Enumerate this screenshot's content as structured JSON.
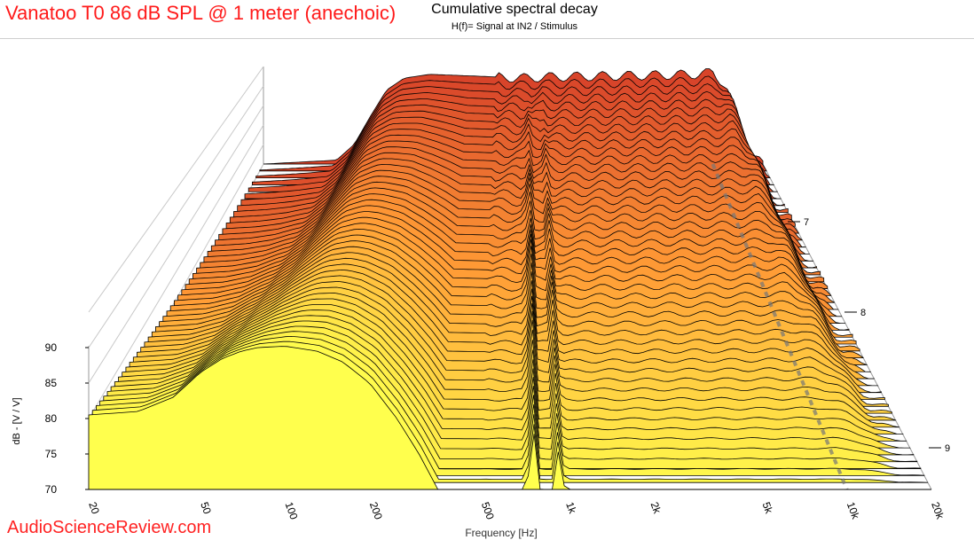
{
  "header": {
    "title": "Vanatoo T0 86 dB SPL @ 1 meter (anechoic)",
    "watermark": "AudioScienceReview.com"
  },
  "chart_data": {
    "type": "waterfall",
    "title": "Cumulative spectral decay",
    "subtitle": "H(f)= Signal at IN2 / Stimulus",
    "xlabel": "Frequency [Hz]",
    "ylabel": "dB - [V / V]",
    "x_scale": "log",
    "xlim": [
      20,
      20000
    ],
    "x_ticks": [
      20,
      50,
      100,
      200,
      500,
      1000,
      2000,
      5000,
      10000,
      20000
    ],
    "x_tick_labels": [
      "20",
      "50",
      "100",
      "200",
      "500",
      "1k",
      "2k",
      "5k",
      "10k",
      "20k"
    ],
    "ylim": [
      70,
      95
    ],
    "y_ticks": [
      70,
      75,
      80,
      85,
      90
    ],
    "time_ticks": [
      "7",
      "8",
      "9"
    ],
    "slices": 48,
    "front_slice_profile": [
      {
        "f": 20,
        "db": 80.5
      },
      {
        "f": 30,
        "db": 81
      },
      {
        "f": 40,
        "db": 83
      },
      {
        "f": 50,
        "db": 86.5
      },
      {
        "f": 60,
        "db": 88.5
      },
      {
        "f": 70,
        "db": 89.5
      },
      {
        "f": 80,
        "db": 90
      },
      {
        "f": 100,
        "db": 90.2
      },
      {
        "f": 130,
        "db": 89.5
      },
      {
        "f": 160,
        "db": 88
      },
      {
        "f": 200,
        "db": 85
      },
      {
        "f": 250,
        "db": 80
      },
      {
        "f": 300,
        "db": 75
      },
      {
        "f": 350,
        "db": 70
      }
    ],
    "first_slice_profile": [
      {
        "f": 20,
        "db": 70
      },
      {
        "f": 55,
        "db": 71
      },
      {
        "f": 70,
        "db": 75
      },
      {
        "f": 90,
        "db": 83
      },
      {
        "f": 110,
        "db": 89
      },
      {
        "f": 140,
        "db": 92
      },
      {
        "f": 200,
        "db": 93
      },
      {
        "f": 400,
        "db": 92.5
      },
      {
        "f": 700,
        "db": 92
      },
      {
        "f": 1000,
        "db": 92.3
      },
      {
        "f": 2000,
        "db": 92.5
      },
      {
        "f": 5000,
        "db": 92.8
      },
      {
        "f": 8000,
        "db": 93
      },
      {
        "f": 10000,
        "db": 93.5
      },
      {
        "f": 12000,
        "db": 90
      },
      {
        "f": 14000,
        "db": 82
      },
      {
        "f": 16000,
        "db": 73
      },
      {
        "f": 20000,
        "db": 70
      }
    ]
  },
  "colors": {
    "front": "#ffff4d",
    "back": "#d8442a",
    "mid": "#ff9b35",
    "title_red": "#ff1a1a"
  }
}
